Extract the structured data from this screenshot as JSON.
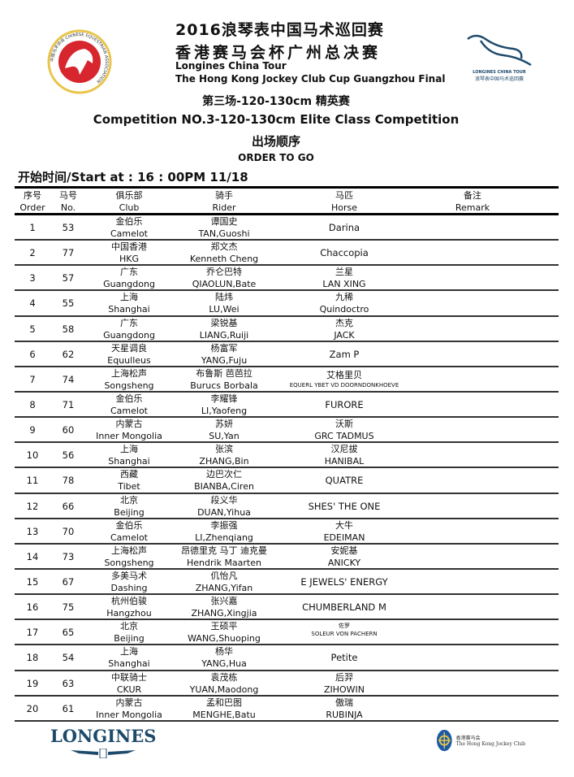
{
  "header": {
    "title_cn_1": "2016浪琴表中国马术巡回赛",
    "title_cn_2": "香港赛马会杯广州总决赛",
    "title_en_1": "Longines China Tour",
    "title_en_2": "The Hong Kong Jockey Club Cup Guangzhou Final",
    "left_logo_text": "中国马术协会 CHINESE EQUESTRIAN ASSOCIATION",
    "right_logo_text_en": "LONGINES CHINA TOUR",
    "right_logo_text_cn": "浪琴表中国马术巡回赛"
  },
  "competition": {
    "cn": "第三场-120-130cm 精英赛",
    "en": "Competition NO.3-120-130cm Elite Class Competition",
    "order_cn": "出场顺序",
    "order_en": "ORDER TO GO",
    "start": "开始时间/Start at : 16 : 00PM 11/18"
  },
  "columns": [
    {
      "cn": "序号",
      "en": "Order"
    },
    {
      "cn": "马号",
      "en": "No."
    },
    {
      "cn": "俱乐部",
      "en": "Club"
    },
    {
      "cn": "骑手",
      "en": "Rider"
    },
    {
      "cn": "马匹",
      "en": "Horse"
    },
    {
      "cn": "备注",
      "en": "Remark"
    }
  ],
  "rows": [
    {
      "order": "1",
      "no": "53",
      "club_cn": "金伯乐",
      "club_en": "Camelot",
      "rider_cn": "谭国史",
      "rider_en": "TAN,Guoshi",
      "horse_cn": "",
      "horse_en": "Darina"
    },
    {
      "order": "2",
      "no": "77",
      "club_cn": "中国香港",
      "club_en": "HKG",
      "rider_cn": "郑文杰",
      "rider_en": "Kenneth Cheng",
      "horse_cn": "",
      "horse_en": "Chaccopia"
    },
    {
      "order": "3",
      "no": "57",
      "club_cn": "广东",
      "club_en": "Guangdong",
      "rider_cn": "乔仑巴特",
      "rider_en": "QIAOLUN,Bate",
      "horse_cn": "兰星",
      "horse_en": "LAN XING"
    },
    {
      "order": "4",
      "no": "55",
      "club_cn": "上海",
      "club_en": "Shanghai",
      "rider_cn": "陆炜",
      "rider_en": "LU,Wei",
      "horse_cn": "九稀",
      "horse_en": "Quindoctro"
    },
    {
      "order": "5",
      "no": "58",
      "club_cn": "广东",
      "club_en": "Guangdong",
      "rider_cn": "梁锐基",
      "rider_en": "LIANG,Ruiji",
      "horse_cn": "杰克",
      "horse_en": "JACK"
    },
    {
      "order": "6",
      "no": "62",
      "club_cn": "天星调良",
      "club_en": "Equulleus",
      "rider_cn": "杨富军",
      "rider_en": "YANG,Fuju",
      "horse_cn": "",
      "horse_en": "Zam P"
    },
    {
      "order": "7",
      "no": "74",
      "club_cn": "上海松声",
      "club_en": "Songsheng",
      "rider_cn": "布鲁斯 芭芭拉",
      "rider_en": "Burucs Borbala",
      "horse_cn": "艾格里贝",
      "horse_en": "EQUERL YBET VD DOORNDONKHOEVE",
      "small": true
    },
    {
      "order": "8",
      "no": "71",
      "club_cn": "金伯乐",
      "club_en": "Camelot",
      "rider_cn": "李耀锋",
      "rider_en": "LI,Yaofeng",
      "horse_cn": "",
      "horse_en": "FURORE"
    },
    {
      "order": "9",
      "no": "60",
      "club_cn": "内蒙古",
      "club_en": "Inner Mongolia",
      "rider_cn": "苏妍",
      "rider_en": "SU,Yan",
      "horse_cn": "沃斯",
      "horse_en": "GRC TADMUS"
    },
    {
      "order": "10",
      "no": "56",
      "club_cn": "上海",
      "club_en": "Shanghai",
      "rider_cn": "张滨",
      "rider_en": "ZHANG,Bin",
      "horse_cn": "汉尼拔",
      "horse_en": "HANIBAL"
    },
    {
      "order": "11",
      "no": "78",
      "club_cn": "西藏",
      "club_en": "Tibet",
      "rider_cn": "边巴次仁",
      "rider_en": "BIANBA,Ciren",
      "horse_cn": "",
      "horse_en": "QUATRE"
    },
    {
      "order": "12",
      "no": "66",
      "club_cn": "北京",
      "club_en": "Beijing",
      "rider_cn": "段义华",
      "rider_en": "DUAN,Yihua",
      "horse_cn": "",
      "horse_en": "SHES' THE ONE"
    },
    {
      "order": "13",
      "no": "70",
      "club_cn": "金伯乐",
      "club_en": "Camelot",
      "rider_cn": "李振强",
      "rider_en": "LI,Zhenqiang",
      "horse_cn": "大牛",
      "horse_en": "EDEIMAN"
    },
    {
      "order": "14",
      "no": "73",
      "club_cn": "上海松声",
      "club_en": "Songsheng",
      "rider_cn": "昂德里克 马丁 迪克曼",
      "rider_en": "Hendrik  Maarten",
      "horse_cn": "安妮基",
      "horse_en": "ANICKY"
    },
    {
      "order": "15",
      "no": "67",
      "club_cn": "多美马术",
      "club_en": "Dashing",
      "rider_cn": "仉怡凡",
      "rider_en": "ZHANG,Yifan",
      "horse_cn": "",
      "horse_en": "E JEWELS' ENERGY"
    },
    {
      "order": "16",
      "no": "75",
      "club_cn": "杭州伯骏",
      "club_en": "Hangzhou",
      "rider_cn": "张兴嘉",
      "rider_en": "ZHANG,Xingjia",
      "horse_cn": "",
      "horse_en": "CHUMBERLAND M"
    },
    {
      "order": "17",
      "no": "65",
      "club_cn": "北京",
      "club_en": "Beijing",
      "rider_cn": "王硕平",
      "rider_en": "WANG,Shuoping",
      "horse_cn": "佐罗",
      "horse_en": "SOLEUR VON PACHERN",
      "small": true
    },
    {
      "order": "18",
      "no": "54",
      "club_cn": "上海",
      "club_en": "Shanghai",
      "rider_cn": "杨华",
      "rider_en": "YANG,Hua",
      "horse_cn": "",
      "horse_en": "Petite"
    },
    {
      "order": "19",
      "no": "63",
      "club_cn": "中联骑士",
      "club_en": "CKUR",
      "rider_cn": "袁茂栋",
      "rider_en": "YUAN,Maodong",
      "horse_cn": "后羿",
      "horse_en": "ZIHOWIN"
    },
    {
      "order": "20",
      "no": "61",
      "club_cn": "内蒙古",
      "club_en": "Inner Mongolia",
      "rider_cn": "孟和巴图",
      "rider_en": "MENGHE,Batu",
      "horse_cn": "傲瑞",
      "horse_en": "RUBINJA"
    }
  ],
  "footer": {
    "longines": "LONGINES",
    "hkjc_cn": "香港赛马会",
    "hkjc_en": "The Hong Kong Jockey Club"
  },
  "colors": {
    "longines_blue": "#1d4a6b",
    "cea_red": "#d7262e",
    "cea_gold": "#e9c44a",
    "hkjc_blue": "#1b5aa6"
  }
}
